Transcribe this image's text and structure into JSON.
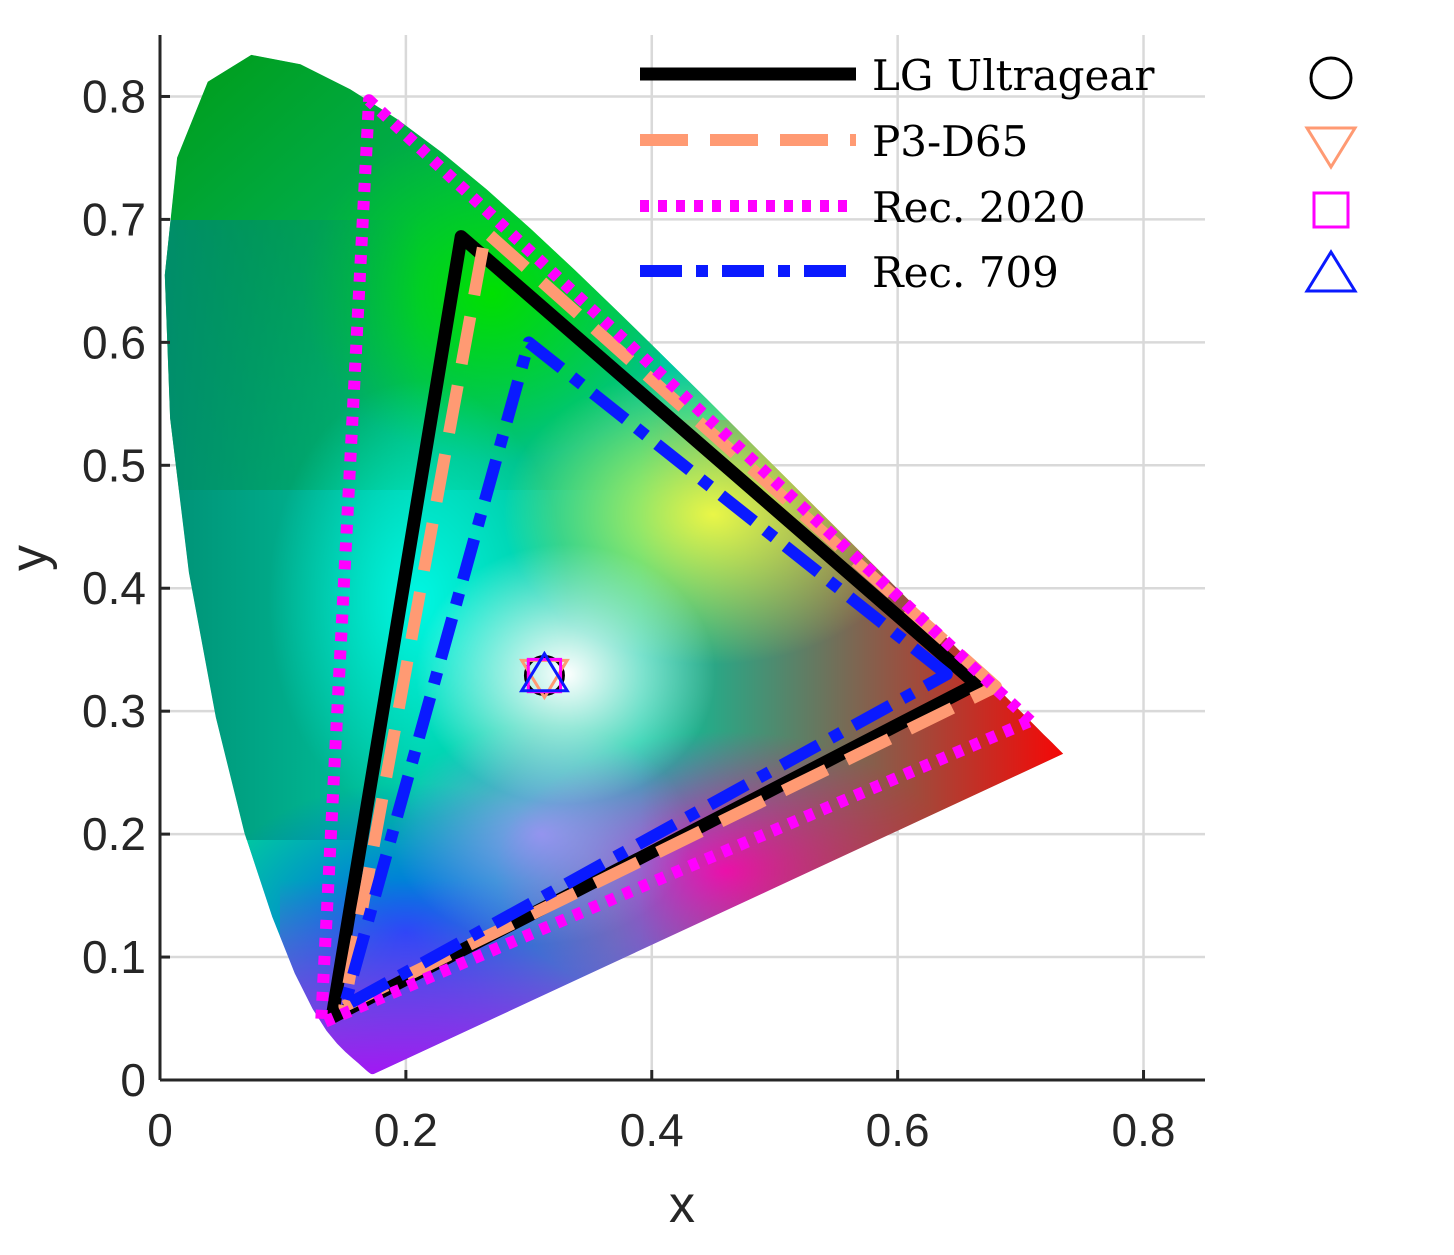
{
  "chart_data": {
    "type": "scatter",
    "title": "",
    "xlabel": "x",
    "ylabel": "y",
    "xlim": [
      0,
      0.85
    ],
    "ylim": [
      0,
      0.85
    ],
    "xticks": [
      "0",
      "0.2",
      "0.4",
      "0.6",
      "0.8"
    ],
    "yticks": [
      "0",
      "0.1",
      "0.2",
      "0.3",
      "0.4",
      "0.5",
      "0.6",
      "0.7",
      "0.8"
    ],
    "grid": true,
    "legend_position": "top-right",
    "spectral_locus": [
      [
        0.1741,
        0.005
      ],
      [
        0.1738,
        0.0049
      ],
      [
        0.1736,
        0.0049
      ],
      [
        0.1733,
        0.0048
      ],
      [
        0.173,
        0.0048
      ],
      [
        0.1726,
        0.0048
      ],
      [
        0.1721,
        0.0048
      ],
      [
        0.1714,
        0.0051
      ],
      [
        0.1703,
        0.0058
      ],
      [
        0.1689,
        0.0069
      ],
      [
        0.1669,
        0.0086
      ],
      [
        0.1644,
        0.0109
      ],
      [
        0.1611,
        0.0138
      ],
      [
        0.1566,
        0.0177
      ],
      [
        0.151,
        0.0227
      ],
      [
        0.144,
        0.0297
      ],
      [
        0.1355,
        0.0399
      ],
      [
        0.1241,
        0.0578
      ],
      [
        0.1096,
        0.0868
      ],
      [
        0.0913,
        0.1327
      ],
      [
        0.0687,
        0.2007
      ],
      [
        0.0454,
        0.295
      ],
      [
        0.0235,
        0.4127
      ],
      [
        0.0082,
        0.5384
      ],
      [
        0.0039,
        0.6548
      ],
      [
        0.0139,
        0.7502
      ],
      [
        0.0389,
        0.812
      ],
      [
        0.0743,
        0.8338
      ],
      [
        0.1142,
        0.8262
      ],
      [
        0.1547,
        0.8059
      ],
      [
        0.1929,
        0.7816
      ],
      [
        0.2296,
        0.7543
      ],
      [
        0.2658,
        0.7243
      ],
      [
        0.3016,
        0.6923
      ],
      [
        0.3373,
        0.6589
      ],
      [
        0.3731,
        0.6245
      ],
      [
        0.4087,
        0.5896
      ],
      [
        0.4441,
        0.5547
      ],
      [
        0.4788,
        0.5202
      ],
      [
        0.5125,
        0.4866
      ],
      [
        0.5448,
        0.4544
      ],
      [
        0.5752,
        0.4242
      ],
      [
        0.6029,
        0.3965
      ],
      [
        0.627,
        0.3725
      ],
      [
        0.6482,
        0.3514
      ],
      [
        0.6658,
        0.334
      ],
      [
        0.6801,
        0.3197
      ],
      [
        0.6915,
        0.3083
      ],
      [
        0.7006,
        0.2993
      ],
      [
        0.7079,
        0.292
      ],
      [
        0.714,
        0.2859
      ],
      [
        0.719,
        0.2809
      ],
      [
        0.723,
        0.277
      ],
      [
        0.726,
        0.274
      ],
      [
        0.7283,
        0.2717
      ],
      [
        0.73,
        0.27
      ],
      [
        0.7311,
        0.2689
      ],
      [
        0.732,
        0.268
      ],
      [
        0.7327,
        0.2673
      ],
      [
        0.7334,
        0.2666
      ],
      [
        0.734,
        0.266
      ],
      [
        0.7344,
        0.2656
      ],
      [
        0.7346,
        0.2654
      ],
      [
        0.7347,
        0.2653
      ]
    ],
    "series": [
      {
        "name": "LG Ultragear",
        "color": "#000000",
        "style": "solid",
        "primaries": [
          [
            0.664,
            0.322
          ],
          [
            0.245,
            0.686
          ],
          [
            0.14,
            0.051
          ]
        ],
        "white_point": [
          0.3127,
          0.329
        ],
        "white_marker": "circle"
      },
      {
        "name": "P3-D65",
        "color": "#ff9a73",
        "style": "dashed",
        "primaries": [
          [
            0.68,
            0.32
          ],
          [
            0.265,
            0.69
          ],
          [
            0.15,
            0.06
          ]
        ],
        "white_point": [
          0.3127,
          0.329
        ],
        "white_marker": "triangle-down"
      },
      {
        "name": "Rec. 2020",
        "color": "#ff00ff",
        "style": "dotted",
        "primaries": [
          [
            0.708,
            0.292
          ],
          [
            0.17,
            0.797
          ],
          [
            0.131,
            0.046
          ]
        ],
        "white_point": [
          0.3127,
          0.329
        ],
        "white_marker": "square"
      },
      {
        "name": "Rec. 709",
        "color": "#0a1aff",
        "style": "dash-dot",
        "primaries": [
          [
            0.64,
            0.33
          ],
          [
            0.3,
            0.6
          ],
          [
            0.15,
            0.06
          ]
        ],
        "white_point": [
          0.3127,
          0.329
        ],
        "white_marker": "triangle-up"
      }
    ]
  }
}
